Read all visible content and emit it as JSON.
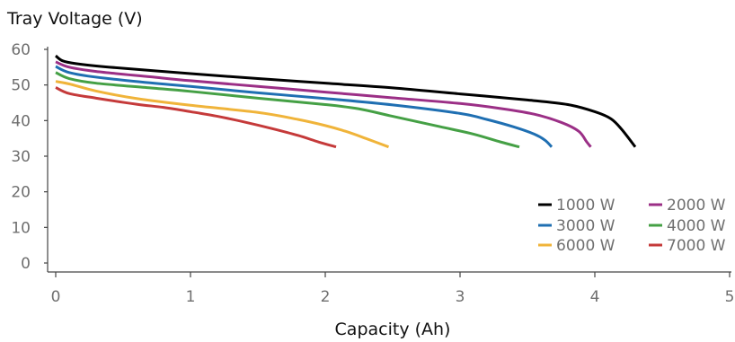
{
  "chart_data": {
    "type": "line",
    "title": "",
    "ylabel": "Tray Voltage (V)",
    "xlabel": "Capacity (Ah)",
    "xlim": [
      0,
      5
    ],
    "ylim": [
      0,
      60
    ],
    "xticks": [
      0,
      1,
      2,
      3,
      4,
      5
    ],
    "yticks": [
      0,
      10,
      20,
      30,
      40,
      50,
      60
    ],
    "xtick_labels": [
      "0",
      "1",
      "2",
      "3",
      "4",
      "5"
    ],
    "ytick_labels": [
      "0",
      "10",
      "20",
      "30",
      "40",
      "50",
      "60"
    ],
    "grid": false,
    "legend_position": "bottom-right",
    "series": [
      {
        "name": "1000 W",
        "color": "#000000",
        "points": [
          [
            0,
            58.2
          ],
          [
            0.05,
            56.8
          ],
          [
            0.15,
            56
          ],
          [
            0.4,
            55
          ],
          [
            1.0,
            53.2
          ],
          [
            1.5,
            51.8
          ],
          [
            2.0,
            50.5
          ],
          [
            2.5,
            49.2
          ],
          [
            3.0,
            47.5
          ],
          [
            3.5,
            45.8
          ],
          [
            3.8,
            44.5
          ],
          [
            4.0,
            42.5
          ],
          [
            4.12,
            40.5
          ],
          [
            4.2,
            37.5
          ],
          [
            4.3,
            32.6
          ]
        ]
      },
      {
        "name": "2000 W",
        "color": "#9b2f86",
        "points": [
          [
            0,
            56.5
          ],
          [
            0.1,
            55
          ],
          [
            0.3,
            53.8
          ],
          [
            0.7,
            52.3
          ],
          [
            1.0,
            51.2
          ],
          [
            1.5,
            49.6
          ],
          [
            2.0,
            48
          ],
          [
            2.5,
            46.4
          ],
          [
            3.0,
            44.8
          ],
          [
            3.3,
            43.4
          ],
          [
            3.55,
            41.8
          ],
          [
            3.75,
            39.5
          ],
          [
            3.88,
            37
          ],
          [
            3.94,
            34
          ],
          [
            3.97,
            32.6
          ]
        ]
      },
      {
        "name": "3000 W",
        "color": "#1f6fb2",
        "points": [
          [
            0,
            55.2
          ],
          [
            0.1,
            53.5
          ],
          [
            0.3,
            52.2
          ],
          [
            0.7,
            50.6
          ],
          [
            1.0,
            49.6
          ],
          [
            1.5,
            47.8
          ],
          [
            2.0,
            46.2
          ],
          [
            2.5,
            44.4
          ],
          [
            3.0,
            42
          ],
          [
            3.2,
            40.3
          ],
          [
            3.4,
            38.2
          ],
          [
            3.55,
            36.2
          ],
          [
            3.63,
            34.5
          ],
          [
            3.68,
            32.6
          ]
        ]
      },
      {
        "name": "4000 W",
        "color": "#45a045",
        "points": [
          [
            0,
            53.5
          ],
          [
            0.1,
            51.8
          ],
          [
            0.3,
            50.5
          ],
          [
            0.7,
            49.2
          ],
          [
            1.0,
            48.2
          ],
          [
            1.5,
            46.3
          ],
          [
            2.0,
            44.5
          ],
          [
            2.25,
            43.3
          ],
          [
            2.5,
            41.2
          ],
          [
            2.85,
            38.3
          ],
          [
            3.1,
            36.2
          ],
          [
            3.3,
            34
          ],
          [
            3.44,
            32.6
          ]
        ]
      },
      {
        "name": "6000 W",
        "color": "#f0b43a",
        "points": [
          [
            0,
            51
          ],
          [
            0.1,
            50.3
          ],
          [
            0.3,
            48.3
          ],
          [
            0.6,
            46.2
          ],
          [
            1.0,
            44.3
          ],
          [
            1.5,
            42.3
          ],
          [
            1.8,
            40.3
          ],
          [
            2.0,
            38.6
          ],
          [
            2.15,
            37
          ],
          [
            2.3,
            35
          ],
          [
            2.47,
            32.6
          ]
        ]
      },
      {
        "name": "7000 W",
        "color": "#c53a3a",
        "points": [
          [
            0,
            49.3
          ],
          [
            0.1,
            47.6
          ],
          [
            0.3,
            46.3
          ],
          [
            0.6,
            44.6
          ],
          [
            0.8,
            43.7
          ],
          [
            1.0,
            42.5
          ],
          [
            1.2,
            41.2
          ],
          [
            1.4,
            39.6
          ],
          [
            1.6,
            37.8
          ],
          [
            1.8,
            35.8
          ],
          [
            1.95,
            34
          ],
          [
            2.08,
            32.6
          ]
        ]
      }
    ]
  }
}
